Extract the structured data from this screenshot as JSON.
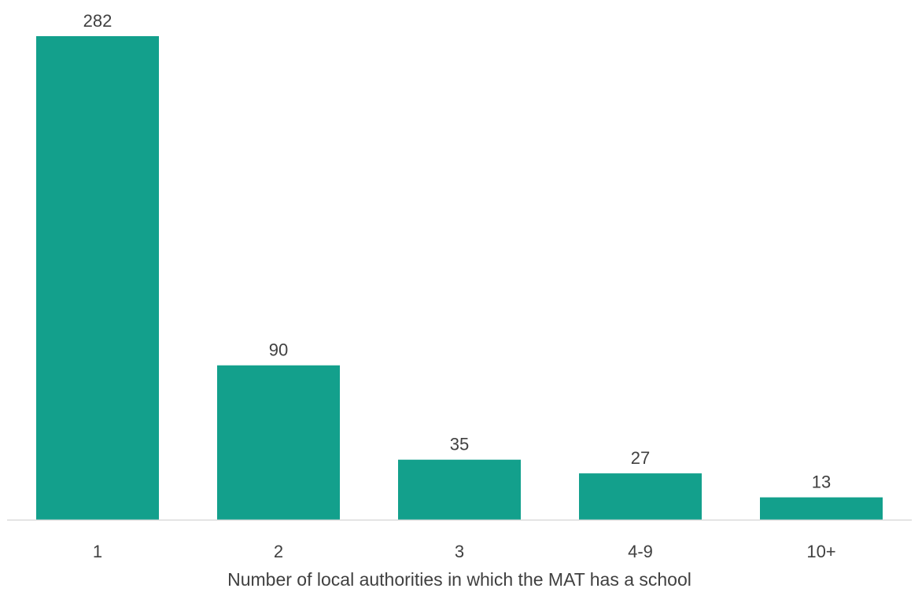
{
  "chart_data": {
    "type": "bar",
    "title": "",
    "xlabel": "Number of local authorities in which the MAT has a school",
    "ylabel": "",
    "categories": [
      "1",
      "2",
      "3",
      "4-9",
      "10+"
    ],
    "values": [
      282,
      90,
      35,
      27,
      13
    ],
    "ylim": [
      0,
      282
    ],
    "grid": false,
    "legend": "none",
    "data_labels": [
      "282",
      "90",
      "35",
      "27",
      "13"
    ],
    "bar_color": "#13A08C",
    "axis_color": "#D9D9D9",
    "text_color": "#404040"
  }
}
